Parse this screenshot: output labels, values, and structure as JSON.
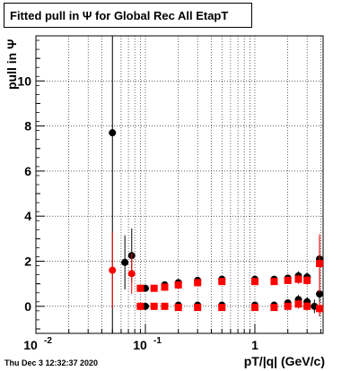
{
  "chart_data": {
    "type": "scatter",
    "title": "Fitted pull in  Ψ  for Global Rec All EtapT",
    "xlabel": "pT/|q| (GeV/c)",
    "ylabel": "pull in  Ψ",
    "xscale": "log",
    "xlim": [
      0.01,
      4.2
    ],
    "ylim": [
      -1.2,
      12.0
    ],
    "grid": true,
    "x_ticklabels": [
      "10^-2",
      "10^-1",
      "1"
    ],
    "y_ticklabels": [
      "0",
      "2",
      "4",
      "6",
      "8",
      "10"
    ],
    "series": [
      {
        "color": "#000000",
        "marker": "circle",
        "points": [
          {
            "x": 0.05,
            "y": 7.7,
            "err": 11.0
          },
          {
            "x": 0.065,
            "y": 1.95,
            "err": 1.2
          },
          {
            "x": 0.075,
            "y": 2.25,
            "err": 1.2
          },
          {
            "x": 0.1,
            "y": 0.0,
            "err": 0.1
          },
          {
            "x": 0.12,
            "y": 0.0,
            "err": 0.1
          },
          {
            "x": 0.15,
            "y": 0.0,
            "err": 0.1
          },
          {
            "x": 0.2,
            "y": 0.05,
            "err": 0.1
          },
          {
            "x": 0.3,
            "y": 0.05,
            "err": 0.1
          },
          {
            "x": 0.5,
            "y": 0.05,
            "err": 0.1
          },
          {
            "x": 1.0,
            "y": 0.05,
            "err": 0.1
          },
          {
            "x": 1.5,
            "y": 0.05,
            "err": 0.1
          },
          {
            "x": 2.0,
            "y": 0.15,
            "err": 0.15
          },
          {
            "x": 2.5,
            "y": 0.3,
            "err": 0.2
          },
          {
            "x": 3.0,
            "y": 0.2,
            "err": 0.2
          },
          {
            "x": 3.5,
            "y": 0.0,
            "err": 0.3
          },
          {
            "x": 3.9,
            "y": 0.55,
            "err": 1.0
          },
          {
            "x": 0.1,
            "y": 0.8,
            "err": 0.1
          },
          {
            "x": 0.15,
            "y": 0.95,
            "err": 0.1
          },
          {
            "x": 0.2,
            "y": 1.05,
            "err": 0.1
          },
          {
            "x": 0.3,
            "y": 1.15,
            "err": 0.1
          },
          {
            "x": 0.5,
            "y": 1.2,
            "err": 0.1
          },
          {
            "x": 1.0,
            "y": 1.2,
            "err": 0.1
          },
          {
            "x": 1.5,
            "y": 1.2,
            "err": 0.1
          },
          {
            "x": 2.0,
            "y": 1.25,
            "err": 0.15
          },
          {
            "x": 2.5,
            "y": 1.35,
            "err": 0.2
          },
          {
            "x": 3.0,
            "y": 1.3,
            "err": 0.2
          },
          {
            "x": 3.9,
            "y": 2.1,
            "err": 1.0
          }
        ]
      },
      {
        "color": "#ff0000",
        "marker": "circle",
        "points": [
          {
            "x": 0.05,
            "y": 1.6,
            "err": 1.7
          },
          {
            "x": 0.075,
            "y": 1.45,
            "err": 0.9
          }
        ]
      },
      {
        "color": "#ff0000",
        "marker": "square",
        "points": [
          {
            "x": 0.09,
            "y": 0.8,
            "err": 0.1
          },
          {
            "x": 0.12,
            "y": 0.8,
            "err": 0.1
          },
          {
            "x": 0.15,
            "y": 0.85,
            "err": 0.1
          },
          {
            "x": 0.2,
            "y": 0.95,
            "err": 0.1
          },
          {
            "x": 0.3,
            "y": 1.05,
            "err": 0.1
          },
          {
            "x": 0.5,
            "y": 1.1,
            "err": 0.1
          },
          {
            "x": 1.0,
            "y": 1.1,
            "err": 0.1
          },
          {
            "x": 1.5,
            "y": 1.1,
            "err": 0.1
          },
          {
            "x": 2.0,
            "y": 1.15,
            "err": 0.15
          },
          {
            "x": 2.5,
            "y": 1.2,
            "err": 0.2
          },
          {
            "x": 3.0,
            "y": 1.15,
            "err": 0.2
          },
          {
            "x": 3.9,
            "y": 1.9,
            "err": 1.3
          },
          {
            "x": 0.09,
            "y": 0.0,
            "err": 0.1
          },
          {
            "x": 0.12,
            "y": 0.0,
            "err": 0.1
          },
          {
            "x": 0.15,
            "y": 0.0,
            "err": 0.1
          },
          {
            "x": 0.2,
            "y": -0.05,
            "err": 0.1
          },
          {
            "x": 0.3,
            "y": -0.05,
            "err": 0.1
          },
          {
            "x": 0.5,
            "y": -0.05,
            "err": 0.1
          },
          {
            "x": 1.0,
            "y": -0.05,
            "err": 0.1
          },
          {
            "x": 1.5,
            "y": -0.05,
            "err": 0.1
          },
          {
            "x": 2.0,
            "y": 0.0,
            "err": 0.15
          },
          {
            "x": 2.5,
            "y": 0.1,
            "err": 0.2
          },
          {
            "x": 3.0,
            "y": 0.0,
            "err": 0.2
          },
          {
            "x": 3.9,
            "y": -0.1,
            "err": 0.3
          }
        ]
      }
    ]
  },
  "footer": {
    "timestamp": "Thu Dec  3 12:32:37 2020"
  }
}
